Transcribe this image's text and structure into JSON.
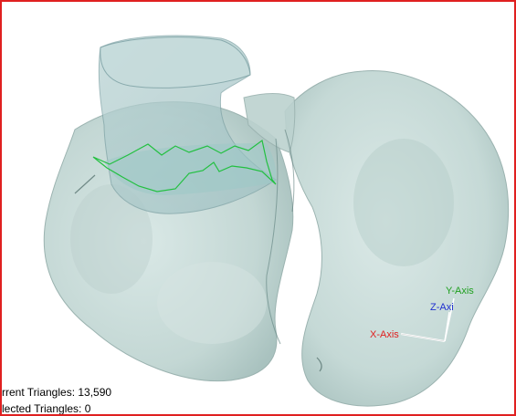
{
  "status": {
    "current_triangles": "rrent Triangles: 13,590",
    "selected_triangles": "lected Triangles: 0"
  },
  "axes": {
    "x_label": "X-Axis",
    "y_label": "Y-Axis",
    "z_label": "Z-Axi",
    "x_color": "#e02020",
    "y_color": "#20a020",
    "z_color": "#2030d0"
  },
  "colors": {
    "border": "#e02020",
    "mesh_fill": "#c7dcd9",
    "selection_outline": "#22c040"
  }
}
